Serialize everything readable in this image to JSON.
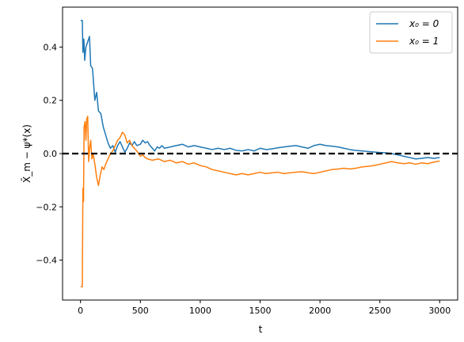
{
  "chart_data": {
    "type": "line",
    "xlabel": "t",
    "ylabel": "X̄_m − ψ*(x)",
    "xlim": [
      -150,
      3150
    ],
    "ylim": [
      -0.55,
      0.55
    ],
    "xticks": [
      0,
      500,
      1000,
      1500,
      2000,
      2500,
      3000
    ],
    "yticks": [
      -0.4,
      -0.2,
      0.0,
      0.2,
      0.4
    ],
    "xtick_labels": [
      "0",
      "500",
      "1000",
      "1500",
      "2000",
      "2500",
      "3000"
    ],
    "ytick_labels": [
      "−0.4",
      "−0.2",
      "0.0",
      "0.2",
      "0.4"
    ],
    "grid": false,
    "legend_position": "top-right",
    "reference_line": {
      "y": 0.0,
      "style": "dashed",
      "color": "#000000"
    },
    "series": [
      {
        "name": "x₀ = 0",
        "color": "#1f77b4",
        "points": [
          [
            1,
            0.5
          ],
          [
            15,
            0.5
          ],
          [
            20,
            0.38
          ],
          [
            28,
            0.43
          ],
          [
            35,
            0.35
          ],
          [
            45,
            0.4
          ],
          [
            60,
            0.42
          ],
          [
            75,
            0.44
          ],
          [
            85,
            0.33
          ],
          [
            100,
            0.32
          ],
          [
            110,
            0.26
          ],
          [
            120,
            0.2
          ],
          [
            135,
            0.23
          ],
          [
            150,
            0.16
          ],
          [
            170,
            0.15
          ],
          [
            190,
            0.1
          ],
          [
            210,
            0.07
          ],
          [
            230,
            0.04
          ],
          [
            250,
            0.02
          ],
          [
            270,
            0.03
          ],
          [
            290,
            0.005
          ],
          [
            310,
            0.03
          ],
          [
            330,
            0.045
          ],
          [
            350,
            0.025
          ],
          [
            370,
            0.005
          ],
          [
            390,
            0.02
          ],
          [
            410,
            0.04
          ],
          [
            430,
            0.03
          ],
          [
            450,
            0.045
          ],
          [
            470,
            0.03
          ],
          [
            500,
            0.035
          ],
          [
            520,
            0.05
          ],
          [
            540,
            0.04
          ],
          [
            560,
            0.045
          ],
          [
            580,
            0.03
          ],
          [
            600,
            0.02
          ],
          [
            620,
            0.01
          ],
          [
            640,
            0.025
          ],
          [
            660,
            0.02
          ],
          [
            680,
            0.03
          ],
          [
            700,
            0.02
          ],
          [
            750,
            0.025
          ],
          [
            800,
            0.03
          ],
          [
            850,
            0.035
          ],
          [
            900,
            0.025
          ],
          [
            950,
            0.03
          ],
          [
            1000,
            0.025
          ],
          [
            1050,
            0.02
          ],
          [
            1100,
            0.015
          ],
          [
            1150,
            0.02
          ],
          [
            1200,
            0.015
          ],
          [
            1250,
            0.02
          ],
          [
            1300,
            0.012
          ],
          [
            1350,
            0.01
          ],
          [
            1400,
            0.015
          ],
          [
            1450,
            0.01
          ],
          [
            1500,
            0.02
          ],
          [
            1550,
            0.015
          ],
          [
            1600,
            0.018
          ],
          [
            1650,
            0.022
          ],
          [
            1700,
            0.025
          ],
          [
            1750,
            0.028
          ],
          [
            1800,
            0.03
          ],
          [
            1850,
            0.025
          ],
          [
            1900,
            0.02
          ],
          [
            1950,
            0.03
          ],
          [
            2000,
            0.035
          ],
          [
            2050,
            0.03
          ],
          [
            2100,
            0.028
          ],
          [
            2150,
            0.025
          ],
          [
            2200,
            0.02
          ],
          [
            2250,
            0.015
          ],
          [
            2300,
            0.012
          ],
          [
            2350,
            0.01
          ],
          [
            2400,
            0.008
          ],
          [
            2450,
            0.006
          ],
          [
            2500,
            0.004
          ],
          [
            2550,
            0.003
          ],
          [
            2600,
            0.0
          ],
          [
            2650,
            -0.005
          ],
          [
            2700,
            -0.01
          ],
          [
            2750,
            -0.015
          ],
          [
            2800,
            -0.02
          ],
          [
            2850,
            -0.018
          ],
          [
            2900,
            -0.015
          ],
          [
            2950,
            -0.018
          ],
          [
            3000,
            -0.015
          ]
        ]
      },
      {
        "name": "x₀ = 1",
        "color": "#ff7f0e",
        "points": [
          [
            1,
            -0.5
          ],
          [
            15,
            -0.5
          ],
          [
            20,
            -0.13
          ],
          [
            25,
            -0.18
          ],
          [
            30,
            0.1
          ],
          [
            38,
            0.12
          ],
          [
            45,
            0.05
          ],
          [
            52,
            0.13
          ],
          [
            60,
            0.14
          ],
          [
            68,
            -0.03
          ],
          [
            76,
            0.02
          ],
          [
            85,
            0.05
          ],
          [
            95,
            -0.02
          ],
          [
            105,
            0.0
          ],
          [
            120,
            -0.04
          ],
          [
            135,
            -0.09
          ],
          [
            150,
            -0.12
          ],
          [
            165,
            -0.08
          ],
          [
            180,
            -0.05
          ],
          [
            195,
            -0.06
          ],
          [
            210,
            -0.04
          ],
          [
            230,
            -0.02
          ],
          [
            250,
            0.0
          ],
          [
            270,
            0.01
          ],
          [
            290,
            0.03
          ],
          [
            310,
            0.05
          ],
          [
            330,
            0.06
          ],
          [
            350,
            0.08
          ],
          [
            370,
            0.07
          ],
          [
            390,
            0.04
          ],
          [
            410,
            0.05
          ],
          [
            430,
            0.03
          ],
          [
            450,
            0.02
          ],
          [
            470,
            0.01
          ],
          [
            500,
            -0.01
          ],
          [
            520,
            -0.005
          ],
          [
            540,
            -0.015
          ],
          [
            560,
            -0.02
          ],
          [
            600,
            -0.025
          ],
          [
            650,
            -0.02
          ],
          [
            700,
            -0.03
          ],
          [
            750,
            -0.025
          ],
          [
            800,
            -0.035
          ],
          [
            850,
            -0.03
          ],
          [
            900,
            -0.04
          ],
          [
            950,
            -0.035
          ],
          [
            1000,
            -0.045
          ],
          [
            1050,
            -0.05
          ],
          [
            1100,
            -0.06
          ],
          [
            1150,
            -0.065
          ],
          [
            1200,
            -0.07
          ],
          [
            1250,
            -0.075
          ],
          [
            1300,
            -0.08
          ],
          [
            1350,
            -0.075
          ],
          [
            1400,
            -0.08
          ],
          [
            1450,
            -0.075
          ],
          [
            1500,
            -0.07
          ],
          [
            1550,
            -0.075
          ],
          [
            1600,
            -0.072
          ],
          [
            1650,
            -0.07
          ],
          [
            1700,
            -0.075
          ],
          [
            1750,
            -0.072
          ],
          [
            1800,
            -0.07
          ],
          [
            1850,
            -0.068
          ],
          [
            1900,
            -0.072
          ],
          [
            1950,
            -0.075
          ],
          [
            2000,
            -0.07
          ],
          [
            2050,
            -0.065
          ],
          [
            2100,
            -0.06
          ],
          [
            2150,
            -0.058
          ],
          [
            2200,
            -0.055
          ],
          [
            2250,
            -0.058
          ],
          [
            2300,
            -0.055
          ],
          [
            2350,
            -0.05
          ],
          [
            2400,
            -0.048
          ],
          [
            2450,
            -0.045
          ],
          [
            2500,
            -0.04
          ],
          [
            2550,
            -0.035
          ],
          [
            2600,
            -0.03
          ],
          [
            2650,
            -0.035
          ],
          [
            2700,
            -0.038
          ],
          [
            2750,
            -0.035
          ],
          [
            2800,
            -0.04
          ],
          [
            2850,
            -0.035
          ],
          [
            2900,
            -0.038
          ],
          [
            2950,
            -0.032
          ],
          [
            3000,
            -0.028
          ]
        ]
      }
    ]
  }
}
